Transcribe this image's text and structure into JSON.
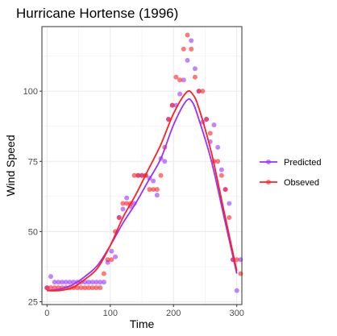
{
  "chart_data": {
    "type": "scatter",
    "title": "Hurricane Hortense (1996)",
    "xlabel": "Time",
    "ylabel": "Wind Speed",
    "xlim": [
      -8,
      308
    ],
    "ylim": [
      24,
      123
    ],
    "x_ticks": [
      0,
      100,
      200,
      300
    ],
    "y_ticks": [
      25,
      50,
      75,
      100
    ],
    "grid": true,
    "legend_position": "right",
    "series": [
      {
        "name": "Predicted",
        "color": "#9b30ff",
        "points": [
          [
            0,
            30
          ],
          [
            6,
            34
          ],
          [
            12,
            32
          ],
          [
            18,
            32
          ],
          [
            24,
            32
          ],
          [
            30,
            32
          ],
          [
            36,
            32
          ],
          [
            42,
            32
          ],
          [
            48,
            32
          ],
          [
            54,
            32
          ],
          [
            60,
            32
          ],
          [
            66,
            32
          ],
          [
            72,
            32
          ],
          [
            78,
            32
          ],
          [
            84,
            32
          ],
          [
            90,
            32
          ],
          [
            96,
            39
          ],
          [
            102,
            43
          ],
          [
            108,
            41
          ],
          [
            114,
            55
          ],
          [
            120,
            58
          ],
          [
            126,
            62
          ],
          [
            132,
            59
          ],
          [
            138,
            60
          ],
          [
            144,
            70
          ],
          [
            150,
            70
          ],
          [
            156,
            70
          ],
          [
            162,
            69
          ],
          [
            168,
            68
          ],
          [
            174,
            63
          ],
          [
            180,
            76
          ],
          [
            186,
            75
          ],
          [
            192,
            90
          ],
          [
            198,
            95
          ],
          [
            204,
            95
          ],
          [
            210,
            99
          ],
          [
            216,
            104
          ],
          [
            222,
            111
          ],
          [
            228,
            118
          ],
          [
            234,
            108
          ],
          [
            240,
            100
          ],
          [
            246,
            89
          ],
          [
            252,
            90
          ],
          [
            258,
            82
          ],
          [
            264,
            88
          ],
          [
            270,
            80
          ],
          [
            276,
            72
          ],
          [
            282,
            65
          ],
          [
            288,
            60
          ],
          [
            294,
            40
          ],
          [
            300,
            29
          ],
          [
            306,
            40
          ]
        ],
        "smooth": [
          [
            0,
            29
          ],
          [
            20,
            29.5
          ],
          [
            40,
            31
          ],
          [
            60,
            34
          ],
          [
            80,
            38
          ],
          [
            100,
            45
          ],
          [
            120,
            53
          ],
          [
            140,
            60
          ],
          [
            160,
            68
          ],
          [
            180,
            76
          ],
          [
            200,
            88
          ],
          [
            220,
            96.5
          ],
          [
            230,
            96
          ],
          [
            240,
            90
          ],
          [
            260,
            75
          ],
          [
            280,
            55
          ],
          [
            300,
            35
          ]
        ]
      },
      {
        "name": "Obseved",
        "color": "#ff2020",
        "points": [
          [
            0,
            30
          ],
          [
            6,
            30
          ],
          [
            12,
            30
          ],
          [
            18,
            30
          ],
          [
            24,
            30
          ],
          [
            30,
            30
          ],
          [
            36,
            30
          ],
          [
            42,
            30
          ],
          [
            48,
            30
          ],
          [
            54,
            30
          ],
          [
            60,
            30
          ],
          [
            66,
            30
          ],
          [
            72,
            30
          ],
          [
            78,
            30
          ],
          [
            84,
            30
          ],
          [
            90,
            35
          ],
          [
            96,
            40
          ],
          [
            102,
            40
          ],
          [
            108,
            50
          ],
          [
            114,
            55
          ],
          [
            120,
            60
          ],
          [
            126,
            60
          ],
          [
            132,
            60
          ],
          [
            138,
            70
          ],
          [
            144,
            70
          ],
          [
            150,
            70
          ],
          [
            156,
            70
          ],
          [
            162,
            65
          ],
          [
            168,
            65
          ],
          [
            174,
            65
          ],
          [
            180,
            70
          ],
          [
            186,
            80
          ],
          [
            192,
            90
          ],
          [
            198,
            95
          ],
          [
            204,
            105
          ],
          [
            210,
            104
          ],
          [
            216,
            115
          ],
          [
            222,
            120
          ],
          [
            228,
            115
          ],
          [
            234,
            105
          ],
          [
            240,
            100
          ],
          [
            246,
            100
          ],
          [
            252,
            90
          ],
          [
            258,
            85
          ],
          [
            264,
            75
          ],
          [
            270,
            75
          ],
          [
            276,
            70
          ],
          [
            282,
            65
          ],
          [
            288,
            55
          ],
          [
            294,
            40
          ],
          [
            300,
            40
          ],
          [
            306,
            35
          ]
        ],
        "smooth": [
          [
            0,
            29
          ],
          [
            20,
            29
          ],
          [
            40,
            30
          ],
          [
            60,
            33
          ],
          [
            80,
            37
          ],
          [
            100,
            45
          ],
          [
            120,
            55
          ],
          [
            140,
            63
          ],
          [
            160,
            72
          ],
          [
            180,
            81
          ],
          [
            200,
            92
          ],
          [
            220,
            99.5
          ],
          [
            230,
            99
          ],
          [
            240,
            94
          ],
          [
            260,
            78
          ],
          [
            280,
            57
          ],
          [
            300,
            36
          ]
        ]
      }
    ]
  }
}
